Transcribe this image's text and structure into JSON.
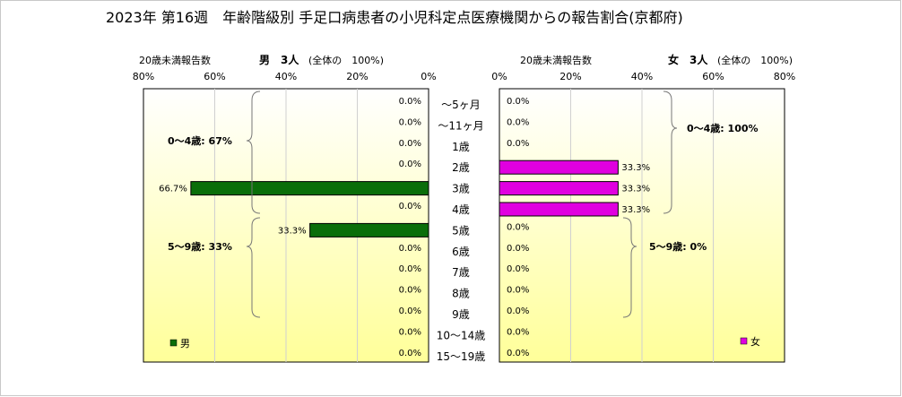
{
  "title": "2023年 第16週　年齢階級別 手足口病患者の小児科定点医療機関からの報告割合(京都府)",
  "left_panel": {
    "header_left": "20歳未満報告数",
    "header_center": "男　3人",
    "header_right": "(全体の　100%)",
    "ticks": [
      "80%",
      "60%",
      "40%",
      "20%",
      "0%"
    ],
    "legend": "男",
    "groups": [
      "0〜4歳: 67%",
      "5〜9歳: 33%"
    ]
  },
  "right_panel": {
    "header_left": "20歳未満報告数",
    "header_center": "女　3人",
    "header_right": "(全体の　100%)",
    "ticks": [
      "0%",
      "20%",
      "40%",
      "60%",
      "80%"
    ],
    "legend": "女",
    "groups": [
      "0〜4歳: 100%",
      "5〜9歳: 0%"
    ]
  },
  "colors": {
    "male": "#0a6e0a",
    "female": "#e000e0",
    "panel_top": "#ffffff",
    "panel_bottom": "#ffff99"
  },
  "chart_data": {
    "type": "bar",
    "categories": [
      "〜5ヶ月",
      "〜11ヶ月",
      "1歳",
      "2歳",
      "3歳",
      "4歳",
      "5歳",
      "6歳",
      "7歳",
      "8歳",
      "9歳",
      "10〜14歳",
      "15〜19歳"
    ],
    "series": [
      {
        "name": "男",
        "values": [
          0.0,
          0.0,
          0.0,
          0.0,
          66.7,
          0.0,
          33.3,
          0.0,
          0.0,
          0.0,
          0.0,
          0.0,
          0.0
        ],
        "labels": [
          "0.0%",
          "0.0%",
          "0.0%",
          "0.0%",
          "66.7%",
          "0.0%",
          "33.3%",
          "0.0%",
          "0.0%",
          "0.0%",
          "0.0%",
          "0.0%",
          "0.0%"
        ]
      },
      {
        "name": "女",
        "values": [
          0.0,
          0.0,
          0.0,
          33.3,
          33.3,
          33.3,
          0.0,
          0.0,
          0.0,
          0.0,
          0.0,
          0.0,
          0.0
        ],
        "labels": [
          "0.0%",
          "0.0%",
          "0.0%",
          "33.3%",
          "33.3%",
          "33.3%",
          "0.0%",
          "0.0%",
          "0.0%",
          "0.0%",
          "0.0%",
          "0.0%",
          "0.0%"
        ]
      }
    ],
    "xlim": [
      0,
      80
    ],
    "grid": true,
    "legend_position": "bottom-left / bottom-right"
  }
}
